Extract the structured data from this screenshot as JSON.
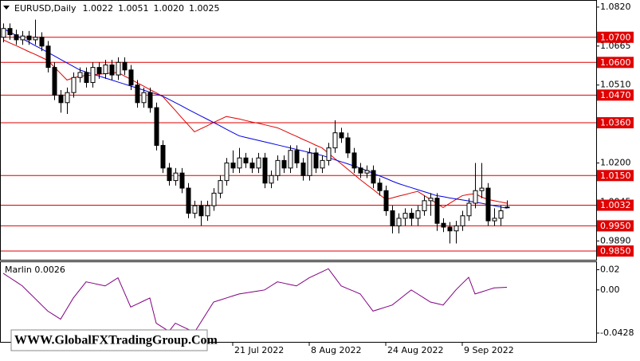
{
  "chart_data": [
    {
      "type": "candlestick",
      "title": "EURUSD,Daily",
      "header_values": [
        "1.0022",
        "1.0051",
        "1.0020",
        "1.0025"
      ],
      "watermark": "WWW.GlobalFXTradingGroup.Com",
      "categories": [
        null,
        null,
        null,
        null,
        null,
        null,
        null,
        null,
        null,
        null,
        null,
        null,
        null,
        null,
        null,
        null,
        null,
        null,
        null,
        null,
        null,
        null,
        null,
        null,
        null,
        null,
        null,
        null,
        null,
        null,
        null,
        null,
        null,
        null,
        null,
        null,
        "21 Jul 2022",
        null,
        null,
        null,
        null,
        null,
        null,
        null,
        null,
        null,
        null,
        null,
        "8 Aug 2022",
        null,
        null,
        null,
        null,
        null,
        null,
        null,
        null,
        null,
        null,
        null,
        "24 Aug 2022",
        null,
        null,
        null,
        null,
        null,
        null,
        null,
        null,
        null,
        null,
        null,
        "9 Sep 2022",
        null,
        null,
        null,
        null,
        null,
        null,
        null
      ],
      "open": [
        1.07,
        1.0735,
        1.071,
        1.069,
        1.0705,
        1.069,
        1.07,
        1.0665,
        1.058,
        1.047,
        1.044,
        1.048,
        1.054,
        1.056,
        1.052,
        1.058,
        1.0555,
        1.059,
        1.055,
        1.06,
        1.057,
        1.051,
        1.044,
        1.048,
        1.042,
        1.027,
        1.018,
        1.013,
        1.016,
        1.01,
        1.0,
        1.003,
        0.999,
        1.003,
        1.008,
        1.013,
        1.02,
        1.018,
        1.022,
        1.02,
        1.018,
        1.022,
        1.012,
        1.015,
        1.021,
        1.018,
        1.025,
        1.02,
        1.015,
        1.024,
        1.018,
        1.021,
        1.026,
        1.032,
        1.03,
        1.024,
        1.018,
        1.016,
        1.017,
        1.012,
        1.009,
        1.001,
        0.995,
        0.998,
        1.0,
        0.998,
        1.001,
        1.005,
        1.006,
        0.996,
        0.9945,
        0.993,
        0.995,
        0.999,
        1.004,
        1.009,
        1.01,
        0.997,
        0.998,
        1.0022
      ],
      "high": [
        1.0755,
        1.0755,
        1.073,
        1.0725,
        1.0725,
        1.077,
        1.072,
        1.0685,
        1.06,
        1.049,
        1.05,
        1.056,
        1.058,
        1.058,
        1.06,
        1.06,
        1.061,
        1.061,
        1.062,
        1.062,
        1.059,
        1.053,
        1.05,
        1.05,
        1.044,
        1.029,
        1.02,
        1.018,
        1.018,
        1.012,
        1.005,
        1.005,
        1.005,
        1.01,
        1.015,
        1.022,
        1.025,
        1.026,
        1.024,
        1.022,
        1.024,
        1.024,
        1.017,
        1.023,
        1.023,
        1.027,
        1.027,
        1.022,
        1.026,
        1.026,
        1.023,
        1.028,
        1.037,
        1.034,
        1.032,
        1.026,
        1.02,
        1.019,
        1.019,
        1.014,
        1.011,
        1.003,
        1.0,
        1.002,
        1.002,
        1.003,
        1.007,
        1.008,
        1.008,
        0.998,
        0.9965,
        0.997,
        1.001,
        1.006,
        1.02,
        1.02,
        1.012,
        1.002,
        1.003,
        1.0051
      ],
      "low": [
        1.068,
        1.069,
        1.067,
        1.067,
        1.067,
        1.067,
        1.0645,
        1.056,
        1.045,
        1.04,
        1.0395,
        1.046,
        1.052,
        1.05,
        1.05,
        1.0535,
        1.0535,
        1.053,
        1.053,
        1.055,
        1.049,
        1.042,
        1.042,
        1.04,
        1.025,
        1.016,
        1.011,
        1.011,
        1.008,
        0.998,
        0.998,
        0.995,
        0.997,
        1.001,
        1.006,
        1.011,
        1.016,
        1.016,
        1.018,
        1.016,
        1.016,
        1.01,
        1.01,
        1.013,
        1.016,
        1.016,
        1.018,
        1.013,
        1.013,
        1.016,
        1.016,
        1.019,
        1.024,
        1.028,
        1.022,
        1.016,
        1.014,
        1.014,
        1.01,
        1.007,
        0.999,
        0.992,
        0.992,
        0.995,
        0.995,
        0.995,
        0.999,
        0.999,
        0.993,
        0.9925,
        0.988,
        0.988,
        0.993,
        0.997,
        1.002,
        1.006,
        0.995,
        0.995,
        0.995,
        1.002
      ],
      "close": [
        1.0735,
        1.071,
        1.069,
        1.0705,
        1.069,
        1.07,
        1.0665,
        1.058,
        1.047,
        1.044,
        1.048,
        1.054,
        1.056,
        1.052,
        1.058,
        1.0555,
        1.059,
        1.055,
        1.06,
        1.057,
        1.051,
        1.044,
        1.048,
        1.042,
        1.027,
        1.018,
        1.013,
        1.016,
        1.01,
        1.0,
        1.003,
        0.999,
        1.003,
        1.008,
        1.013,
        1.02,
        1.018,
        1.022,
        1.02,
        1.018,
        1.022,
        1.012,
        1.015,
        1.021,
        1.018,
        1.025,
        1.02,
        1.015,
        1.024,
        1.018,
        1.021,
        1.026,
        1.032,
        1.03,
        1.024,
        1.018,
        1.016,
        1.017,
        1.012,
        1.009,
        1.001,
        0.995,
        0.998,
        1.0,
        0.998,
        1.001,
        1.005,
        1.006,
        0.996,
        0.9945,
        0.993,
        0.995,
        0.999,
        1.004,
        1.009,
        1.01,
        0.997,
        0.998,
        1.001,
        1.0025
      ],
      "lines": [
        {
          "color": "#e00000",
          "values": [
            1.069,
            1.0678,
            1.0667,
            1.0655,
            1.0643,
            1.0632,
            1.062,
            1.0608,
            1.0582,
            1.0556,
            1.053,
            1.0538,
            1.0545,
            1.0548,
            1.055,
            1.0553,
            1.0555,
            1.0558,
            1.056,
            1.0546,
            1.0533,
            1.0519,
            1.0506,
            1.0492,
            1.0479,
            1.0465,
            1.0437,
            1.0409,
            1.038,
            1.0352,
            1.0324,
            1.0336,
            1.0348,
            1.0361,
            1.0373,
            1.0385,
            1.038,
            1.0375,
            1.0369,
            1.0363,
            1.0358,
            1.0352,
            1.0346,
            1.034,
            1.0329,
            1.0317,
            1.0306,
            1.0294,
            1.0283,
            1.0271,
            1.026,
            1.0239,
            1.0218,
            1.0197,
            1.0176,
            1.0155,
            1.0134,
            1.0114,
            1.0095,
            1.0075,
            1.0055,
            1.0061,
            1.0068,
            1.0074,
            1.0081,
            1.0087,
            1.0071,
            1.0055,
            1.0039,
            1.0023,
            1.0039,
            1.0055,
            1.007,
            1.0075,
            1.0078,
            1.0065,
            1.0055,
            1.005,
            1.0045,
            1.004
          ]
        },
        {
          "color": "#0000e0",
          "values": [
            1.0735,
            1.0721,
            1.0708,
            1.0694,
            1.0681,
            1.0667,
            1.0654,
            1.064,
            1.0626,
            1.0612,
            1.0598,
            1.0584,
            1.057,
            1.0562,
            1.0554,
            1.0546,
            1.0538,
            1.053,
            1.0522,
            1.0514,
            1.0506,
            1.0498,
            1.049,
            1.0482,
            1.0474,
            1.0466,
            1.0453,
            1.044,
            1.0427,
            1.0413,
            1.04,
            1.0387,
            1.0374,
            1.0361,
            1.0348,
            1.0334,
            1.0321,
            1.0308,
            1.0302,
            1.0296,
            1.029,
            1.0284,
            1.0278,
            1.0272,
            1.0266,
            1.026,
            1.0254,
            1.0248,
            1.0242,
            1.0236,
            1.023,
            1.0222,
            1.0213,
            1.0205,
            1.0197,
            1.0188,
            1.018,
            1.017,
            1.0159,
            1.0149,
            1.0139,
            1.0128,
            1.0118,
            1.011,
            1.0102,
            1.0094,
            1.0086,
            1.0078,
            1.007,
            1.0066,
            1.0061,
            1.0057,
            1.0053,
            1.0049,
            1.0044,
            1.004,
            1.0035,
            1.003,
            1.0025,
            1.002
          ]
        }
      ],
      "levels": [
        {
          "value": 1.07,
          "label": "1.0700"
        },
        {
          "value": 1.06,
          "label": "1.0600"
        },
        {
          "value": 1.047,
          "label": "1.0470"
        },
        {
          "value": 1.036,
          "label": "1.0360"
        },
        {
          "value": 1.015,
          "label": "1.0150"
        },
        {
          "value": 1.0032,
          "label": "1.0032"
        },
        {
          "value": 0.995,
          "label": "0.9950"
        },
        {
          "value": 0.985,
          "label": "0.9850"
        }
      ],
      "level_color": "#e00000",
      "ylim": [
        0.9815,
        1.0845
      ],
      "yticks": [
        {
          "value": 1.082,
          "label": "1.0820"
        },
        {
          "value": 1.0665,
          "label": "1.0665"
        },
        {
          "value": 1.051,
          "label": "1.0510"
        },
        {
          "value": 1.02,
          "label": "1.0200"
        },
        {
          "value": 1.0045,
          "label": "1.0045"
        },
        {
          "value": 0.989,
          "label": "0.9890"
        }
      ]
    },
    {
      "type": "line",
      "title": "Marlin 0.0026",
      "color": "#800080",
      "values": [
        0.0165,
        0.0123,
        0.0082,
        0.004,
        -0.0023,
        -0.0085,
        -0.0148,
        -0.021,
        -0.025,
        -0.029,
        -0.0185,
        -0.008,
        0.0,
        0.008,
        0.0067,
        0.0053,
        0.004,
        0.008,
        0.012,
        -0.0025,
        -0.017,
        -0.014,
        -0.011,
        -0.008,
        -0.033,
        -0.037,
        -0.041,
        -0.033,
        -0.036,
        -0.039,
        -0.042,
        -0.032,
        -0.022,
        -0.012,
        -0.01,
        -0.008,
        -0.006,
        -0.004,
        -0.003,
        -0.002,
        -0.001,
        0.0,
        0.004,
        0.008,
        0.0067,
        0.0053,
        0.004,
        0.008,
        0.012,
        0.015,
        0.018,
        0.021,
        0.0125,
        0.004,
        0.0013,
        -0.0013,
        -0.004,
        -0.0125,
        -0.021,
        -0.019,
        -0.017,
        -0.015,
        -0.01,
        -0.005,
        0.0,
        -0.004,
        -0.008,
        -0.012,
        -0.0135,
        -0.015,
        -0.0075,
        0.0,
        0.0063,
        0.0125,
        -0.004,
        -0.002,
        0.0,
        0.002,
        0.0023,
        0.0026
      ],
      "ylim": [
        -0.0428,
        0.0267
      ],
      "yticks": [
        0.02,
        {
          "value": 0,
          "label": "0.00"
        },
        -0.0428
      ]
    }
  ]
}
